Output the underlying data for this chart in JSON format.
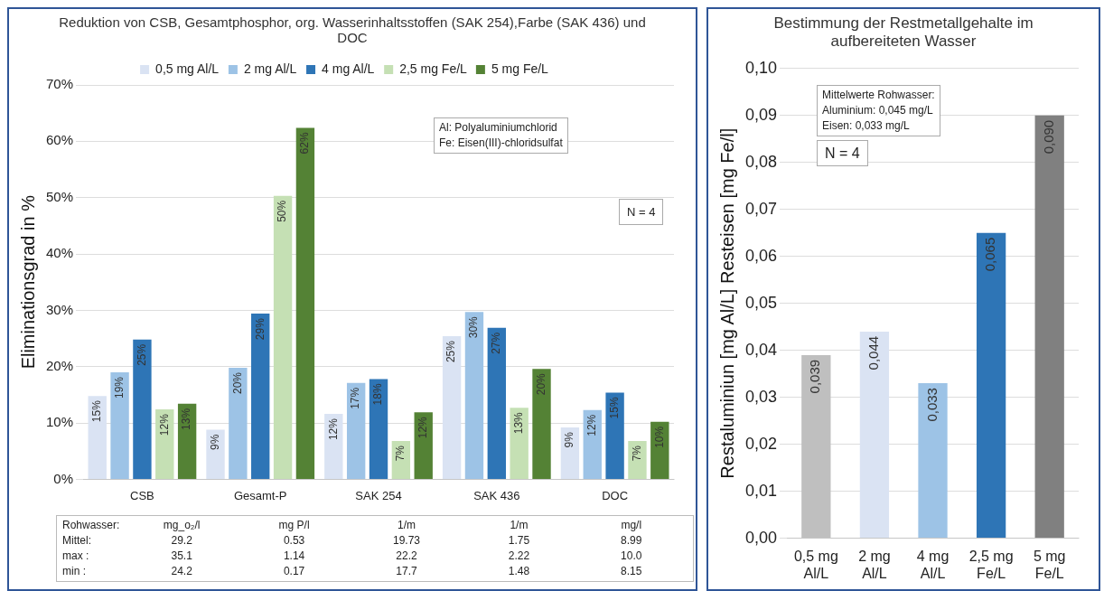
{
  "chart_data": [
    {
      "type": "bar",
      "title": "Reduktion von CSB, Gesamtphosphor, org. Wasserinhaltsstoffen (SAK 254),Farbe (SAK 436) und DOC",
      "ylabel": "Eliminationsgrad in %",
      "categories": [
        "CSB",
        "Gesamt-P",
        "SAK 254",
        "SAK 436",
        "DOC"
      ],
      "series": [
        {
          "name": "0,5 mg Al/L",
          "color": "#dae3f3",
          "values": [
            14.8,
            8.8,
            11.6,
            25.4,
            9.2
          ],
          "value_labels": [
            "15%",
            "9%",
            "12%",
            "25%",
            "9%"
          ]
        },
        {
          "name": "2 mg Al/L",
          "color": "#9dc3e6",
          "values": [
            19.0,
            19.8,
            17.1,
            29.7,
            12.3
          ],
          "value_labels": [
            "19%",
            "20%",
            "17%",
            "30%",
            "12%"
          ]
        },
        {
          "name": "4 mg Al/L",
          "color": "#2e75b6",
          "values": [
            24.8,
            29.4,
            17.8,
            26.9,
            15.4
          ],
          "value_labels": [
            "25%",
            "29%",
            "18%",
            "27%",
            "15%"
          ]
        },
        {
          "name": "2,5 mg Fe/L",
          "color": "#c5e0b4",
          "values": [
            12.4,
            50.3,
            6.8,
            12.7,
            6.8
          ],
          "value_labels": [
            "12%",
            "50%",
            "7%",
            "13%",
            "7%"
          ]
        },
        {
          "name": "5 mg Fe/L",
          "color": "#548235",
          "values": [
            13.4,
            62.4,
            11.9,
            19.6,
            10.2
          ],
          "value_labels": [
            "13%",
            "62%",
            "12%",
            "20%",
            "10%"
          ]
        }
      ],
      "ylim": [
        0,
        70
      ],
      "yticks": [
        {
          "value": 0,
          "label": "0%"
        },
        {
          "value": 10,
          "label": "10%"
        },
        {
          "value": 20,
          "label": "20%"
        },
        {
          "value": 30,
          "label": "30%"
        },
        {
          "value": 40,
          "label": "40%"
        },
        {
          "value": 50,
          "label": "50%"
        },
        {
          "value": 60,
          "label": "60%"
        },
        {
          "value": 70,
          "label": "70%"
        }
      ],
      "grid": "y",
      "legend": "top",
      "annotations": [
        "Al: Polyaluminiumchlorid",
        "Fe: Eisen(III)-chloridsulfat",
        "N = 4",
        "Rohwasser:",
        "mg_o₂/l",
        "mg P/l",
        "1/m",
        "1/m",
        "mg/l",
        "Mittel:",
        "29.2",
        "0.53",
        "19.73",
        "1.75",
        "8.99",
        "max :",
        "35.1",
        "1.14",
        "22.2",
        "2.22",
        "10.0",
        "min  :",
        "24.2",
        "0.17",
        "17.7",
        "1.48",
        "8.15"
      ]
    },
    {
      "type": "bar",
      "title": "Bestimmung der Restmetallgehalte im aufbereiteten Wasser",
      "ylabel": "Restaluminiun [mg Al/L] Resteisen [mg Fe/l]",
      "categories": [
        "0,5 mg Al/L",
        "2 mg Al/L",
        "4 mg Al/L",
        "2,5 mg Fe/L",
        "5 mg Fe/L"
      ],
      "values": [
        0.039,
        0.044,
        0.033,
        0.065,
        0.09
      ],
      "colors": [
        "#bfbfbf",
        "#dae3f3",
        "#9dc3e6",
        "#2e75b6",
        "#808080"
      ],
      "value_labels": [
        "0,039",
        "0,044",
        "0,033",
        "0,065",
        "0,090"
      ],
      "ylim": [
        0,
        0.1
      ],
      "yticks": [
        {
          "value": 0,
          "label": "0,00"
        },
        {
          "value": 0.01,
          "label": "0,01"
        },
        {
          "value": 0.02,
          "label": "0,02"
        },
        {
          "value": 0.03,
          "label": "0,03"
        },
        {
          "value": 0.04,
          "label": "0,04"
        },
        {
          "value": 0.05,
          "label": "0,05"
        },
        {
          "value": 0.06,
          "label": "0,06"
        },
        {
          "value": 0.07,
          "label": "0,07"
        },
        {
          "value": 0.08,
          "label": "0,08"
        },
        {
          "value": 0.09,
          "label": "0,09"
        },
        {
          "value": 0.1,
          "label": "0,10"
        }
      ],
      "grid": "y",
      "legend": false,
      "annotations": [
        "Mittelwerte Rohwasser:",
        "Aluminium: 0,045 mg/L",
        "Eisen: 0,033 mg/L",
        "N = 4"
      ]
    }
  ]
}
